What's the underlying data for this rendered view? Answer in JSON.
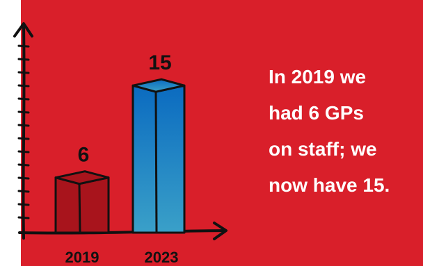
{
  "colors": {
    "background": "#d91f2a",
    "page_edge": "#ffffff",
    "bar_2019": "#a8141c",
    "bar_2023_top": "#0b6bc0",
    "bar_2023_bottom": "#3aa0c8",
    "ink": "#111111",
    "text": "#ffffff"
  },
  "caption": {
    "lines": [
      "In 2019 we",
      "had 6 GPs",
      "on staff; we",
      "now have 15."
    ]
  },
  "chart_data": {
    "type": "bar",
    "categories": [
      "2019",
      "2023"
    ],
    "values": [
      6,
      15
    ],
    "data_labels": [
      "6",
      "15"
    ],
    "title": "",
    "xlabel": "",
    "ylabel": "",
    "ylim": [
      0,
      18
    ],
    "grid": false,
    "legend": "none"
  }
}
